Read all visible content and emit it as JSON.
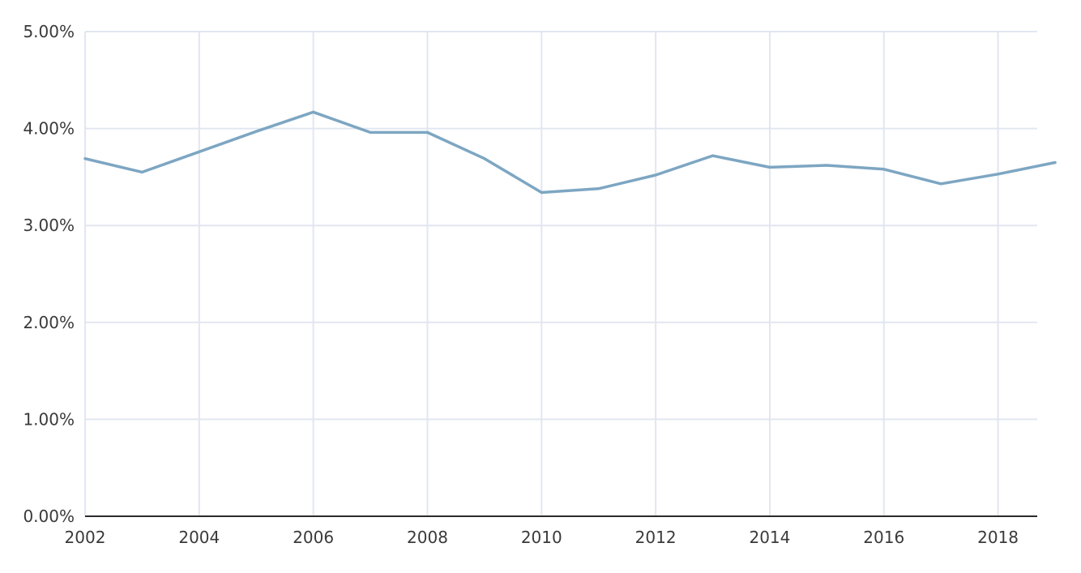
{
  "chart_data": {
    "type": "line",
    "title": "",
    "xlabel": "",
    "ylabel": "",
    "x": [
      2002,
      2003,
      2004,
      2005,
      2006,
      2007,
      2008,
      2009,
      2010,
      2011,
      2012,
      2013,
      2014,
      2015,
      2016,
      2017,
      2018,
      2019
    ],
    "series": [
      {
        "values": [
          3.69,
          3.55,
          3.76,
          3.97,
          4.17,
          3.96,
          3.96,
          3.69,
          3.34,
          3.38,
          3.52,
          3.72,
          3.6,
          3.62,
          3.58,
          3.43,
          3.53,
          3.65
        ],
        "color": "#7da6c2"
      }
    ],
    "xlim": [
      2002,
      2019
    ],
    "ylim": [
      0,
      5
    ],
    "x_ticks": [
      2002,
      2004,
      2006,
      2008,
      2010,
      2012,
      2014,
      2016,
      2018
    ],
    "x_tick_labels": [
      "2002",
      "2004",
      "2006",
      "2008",
      "2010",
      "2012",
      "2014",
      "2016",
      "2018"
    ],
    "y_ticks": [
      0,
      1,
      2,
      3,
      4,
      5
    ],
    "y_tick_labels": [
      "0.00%",
      "1.00%",
      "2.00%",
      "3.00%",
      "4.00%",
      "5.00%"
    ],
    "grid": true,
    "colors": {
      "grid": "#e1e6f0",
      "axis": "#2b2b2b",
      "text": "#3a3a3a"
    }
  }
}
